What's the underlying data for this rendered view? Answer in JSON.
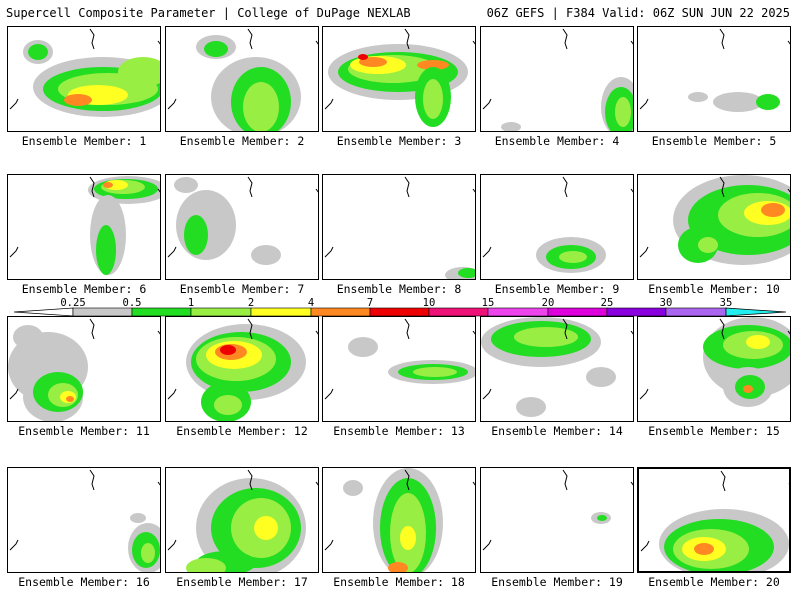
{
  "header": {
    "title_left": "Supercell Composite Parameter | College of DuPage NEXLAB",
    "title_right": "06Z GEFS | F384 Valid: 06Z SUN JUN 22 2025"
  },
  "colors": {
    "bin_025_05": "#c8c8c8",
    "bin_05_1": "#22dd22",
    "bin_1_2": "#99ee44",
    "bin_2_4": "#ffff22",
    "bin_4_7": "#ff8822",
    "bin_7_10": "#ee0000",
    "bin_10_15": "#ee1177",
    "bin_15_20": "#ee44ee",
    "bin_20_25": "#dd00dd",
    "bin_25_30": "#8800dd",
    "bin_30_35": "#aa66ee",
    "bin_35_plus": "#22eeee"
  },
  "colorbar": {
    "ticks": [
      "0.25",
      "0.5",
      "1",
      "2",
      "4",
      "7",
      "10",
      "15",
      "20",
      "25",
      "30",
      "35"
    ]
  },
  "panels": [
    {
      "label": "Ensemble Member: 1",
      "max_category": "4-7"
    },
    {
      "label": "Ensemble Member: 2",
      "max_category": "1-2"
    },
    {
      "label": "Ensemble Member: 3",
      "max_category": "7-10"
    },
    {
      "label": "Ensemble Member: 4",
      "max_category": "1-2"
    },
    {
      "label": "Ensemble Member: 5",
      "max_category": "0.5-1"
    },
    {
      "label": "Ensemble Member: 6",
      "max_category": "4-7"
    },
    {
      "label": "Ensemble Member: 7",
      "max_category": "0.5-1"
    },
    {
      "label": "Ensemble Member: 8",
      "max_category": "1-2"
    },
    {
      "label": "Ensemble Member: 9",
      "max_category": "1-2"
    },
    {
      "label": "Ensemble Member: 10",
      "max_category": "7-10"
    },
    {
      "label": "Ensemble Member: 11",
      "max_category": "7-10"
    },
    {
      "label": "Ensemble Member: 12",
      "max_category": "7-10"
    },
    {
      "label": "Ensemble Member: 13",
      "max_category": "1-2"
    },
    {
      "label": "Ensemble Member: 14",
      "max_category": "1-2"
    },
    {
      "label": "Ensemble Member: 15",
      "max_category": "7-10"
    },
    {
      "label": "Ensemble Member: 16",
      "max_category": "1-2"
    },
    {
      "label": "Ensemble Member: 17",
      "max_category": "2-4"
    },
    {
      "label": "Ensemble Member: 18",
      "max_category": "4-7"
    },
    {
      "label": "Ensemble Member: 19",
      "max_category": "0.5-1"
    },
    {
      "label": "Ensemble Member: 20",
      "max_category": "4-7",
      "selected": true
    }
  ]
}
